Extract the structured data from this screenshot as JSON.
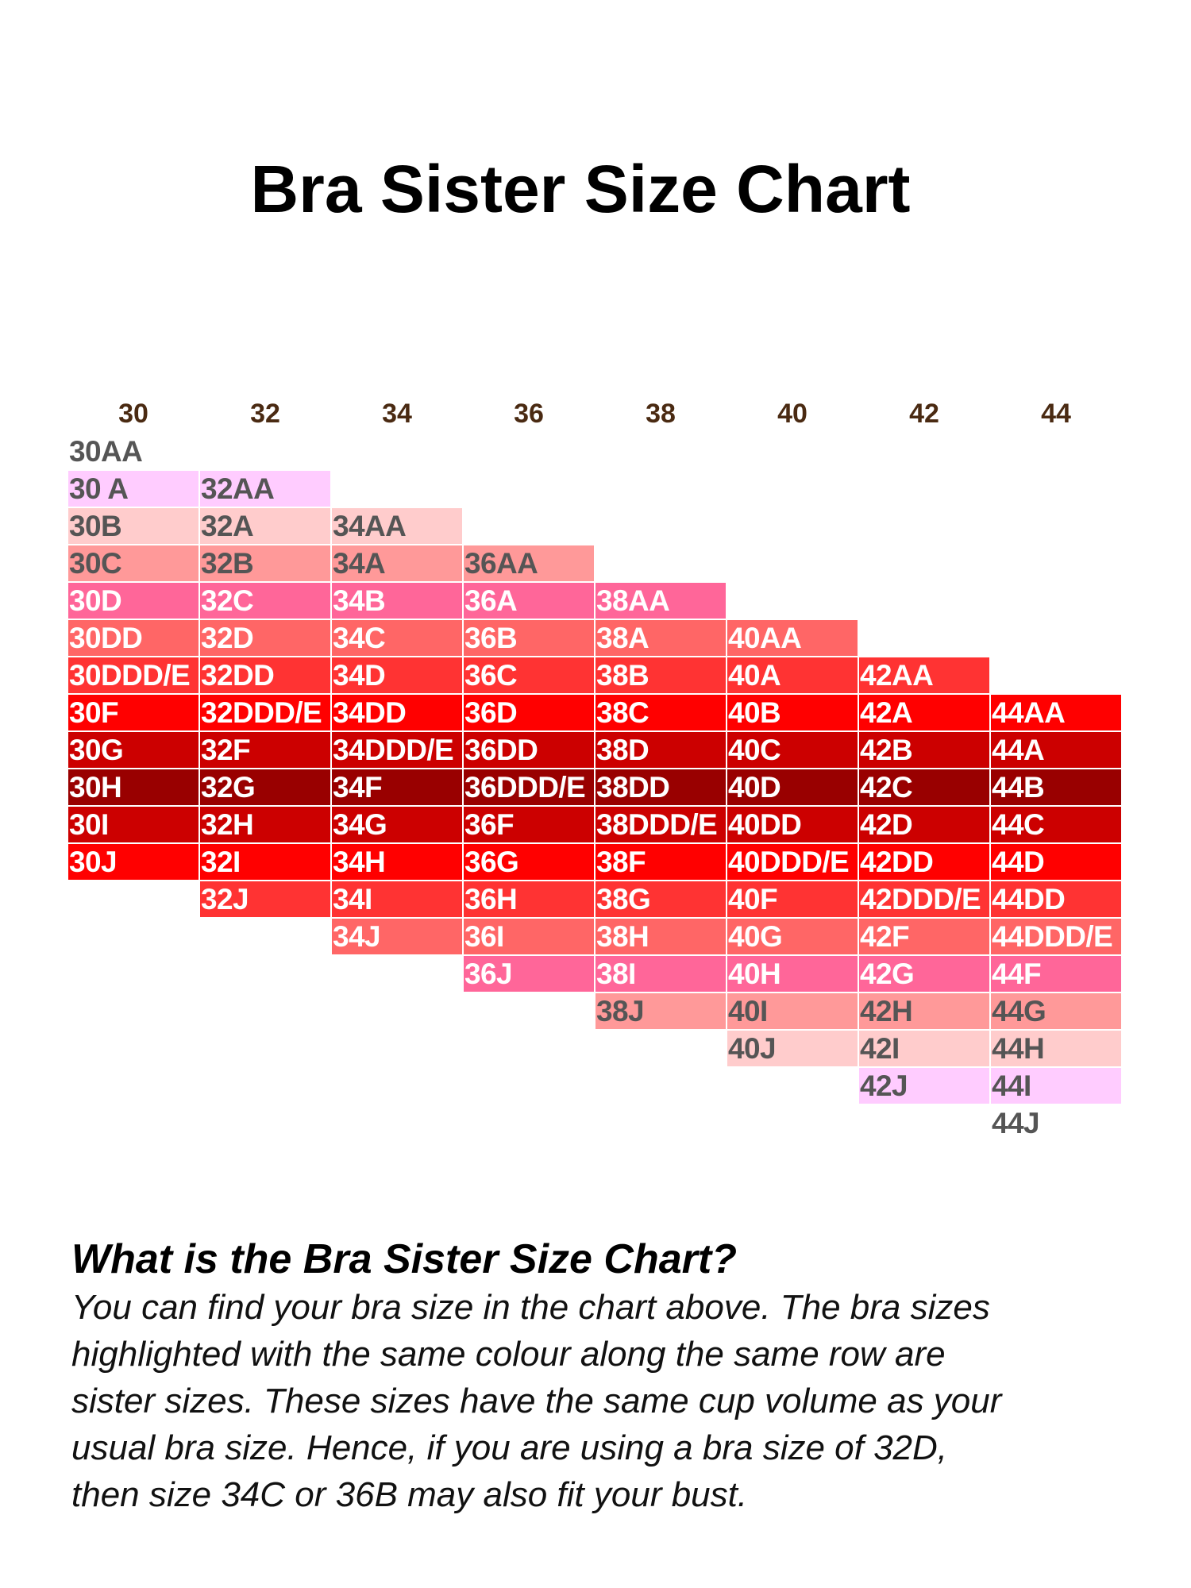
{
  "title": "Bra Sister Size Chart",
  "colors": {
    "header_text": "#4a2a12",
    "dark_text": "#555555",
    "light_text": "#ffffff",
    "row_backgrounds": [
      "#ffffff",
      "#ffccff",
      "#ffcccc",
      "#ff9999",
      "#ff6699",
      "#ff6666",
      "#ff3333",
      "#ff0000",
      "#cc0000",
      "#990000",
      "#cc0000",
      "#ff0000",
      "#ff3333",
      "#ff6666",
      "#ff6699",
      "#ff9999",
      "#ffcccc",
      "#ffccff",
      "#ffffff"
    ]
  },
  "chart_data": {
    "type": "table",
    "columns": [
      "30",
      "32",
      "34",
      "36",
      "38",
      "40",
      "42",
      "44"
    ],
    "cells": [
      [
        "30AA",
        "30 A",
        "30B",
        "30C",
        "30D",
        "30DD",
        "30DDD/E",
        "30F",
        "30G",
        "30H",
        "30I",
        "30J"
      ],
      [
        "32AA",
        "32A",
        "32B",
        "32C",
        "32D",
        "32DD",
        "32DDD/E",
        "32F",
        "32G",
        "32H",
        "32I",
        "32J"
      ],
      [
        "34AA",
        "34A",
        "34B",
        "34C",
        "34D",
        "34DD",
        "34DDD/E",
        "34F",
        "34G",
        "34H",
        "34I",
        "34J"
      ],
      [
        "36AA",
        "36A",
        "36B",
        "36C",
        "36D",
        "36DD",
        "36DDD/E",
        "36F",
        "36G",
        "36H",
        "36I",
        "36J"
      ],
      [
        "38AA",
        "38A",
        "38B",
        "38C",
        "38D",
        "38DD",
        "38DDD/E",
        "38F",
        "38G",
        "38H",
        "38I",
        "38J"
      ],
      [
        "40AA",
        "40A",
        "40B",
        "40C",
        "40D",
        "40DD",
        "40DDD/E",
        "40F",
        "40G",
        "40H",
        "40I",
        "40J"
      ],
      [
        "42AA",
        "42A",
        "42B",
        "42C",
        "42D",
        "42DD",
        "42DDD/E",
        "42F",
        "42G",
        "42H",
        "42I",
        "42J"
      ],
      [
        "44AA",
        "44A",
        "44B",
        "44C",
        "44D",
        "44DD",
        "44DDD/E",
        "44F",
        "44G",
        "44H",
        "44I",
        "44J"
      ]
    ]
  },
  "explanation": {
    "heading": "What is the Bra Sister Size Chart?",
    "lines": [
      "You can find your bra size in the chart above. The bra sizes",
      "highlighted with the same colour along the same row are",
      "sister sizes. These sizes have the same cup volume as your",
      "usual bra size. Hence, if you are using a bra size of 32D,",
      "then size 34C or 36B may also fit your bust."
    ]
  }
}
